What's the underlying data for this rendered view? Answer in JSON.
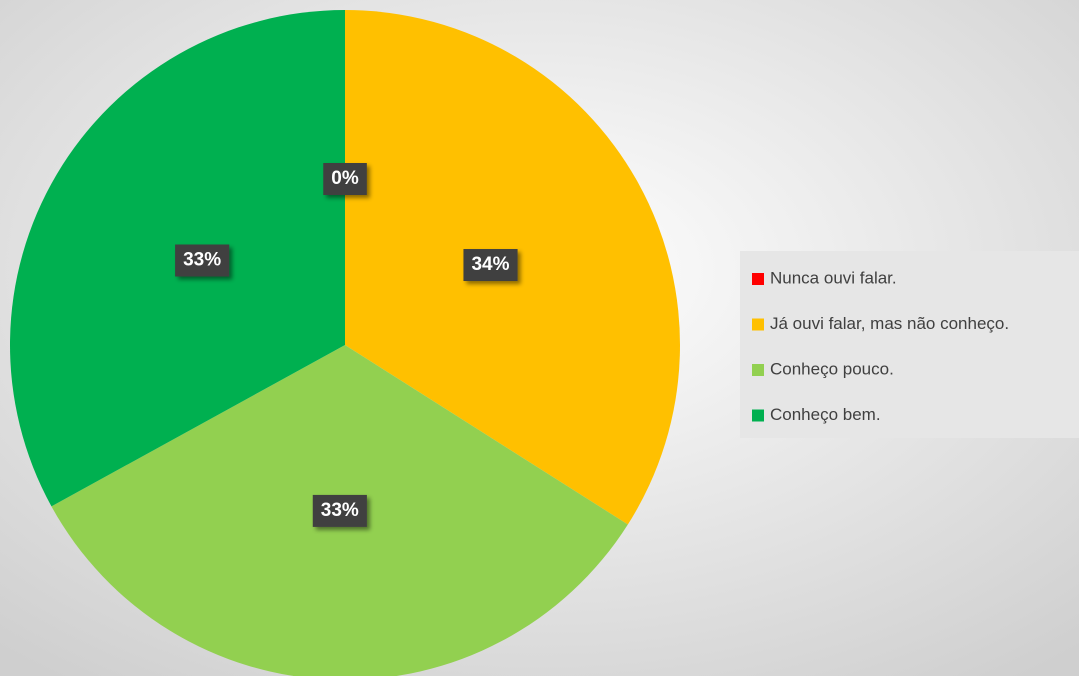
{
  "chart_data": {
    "type": "pie",
    "categories": [
      "Nunca ouvi falar.",
      "Já ouvi falar, mas não conheço.",
      "Conheço pouco.",
      "Conheço bem."
    ],
    "values": [
      0,
      34,
      33,
      33
    ],
    "value_labels": [
      "0%",
      "34%",
      "33%",
      "33%"
    ],
    "colors": [
      "#ff0000",
      "#ffc000",
      "#92d050",
      "#00b050"
    ],
    "legend": "right"
  }
}
